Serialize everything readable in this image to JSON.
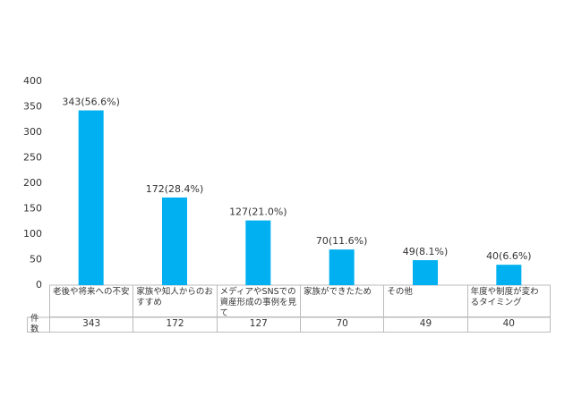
{
  "chart_data": {
    "type": "bar",
    "categories": [
      "老後や将来への不安",
      "家族や知人からのおすすめ",
      "メディアやSNSでの資産形成の事例を見て",
      "家族ができたため",
      "その他",
      "年度や制度が変わるタイミング"
    ],
    "values": [
      343,
      172,
      127,
      70,
      49,
      40
    ],
    "value_labels": [
      "343(56.6%)",
      "172(28.4%)",
      "127(21.0%)",
      "70(11.6%)",
      "49(8.1%)",
      "40(6.6%)"
    ],
    "color": "#00b0f0",
    "ylim": [
      0,
      400
    ],
    "yticks": [
      0,
      50,
      100,
      150,
      200,
      250,
      300,
      350,
      400
    ],
    "grid": false,
    "table_row_label": "件数"
  }
}
